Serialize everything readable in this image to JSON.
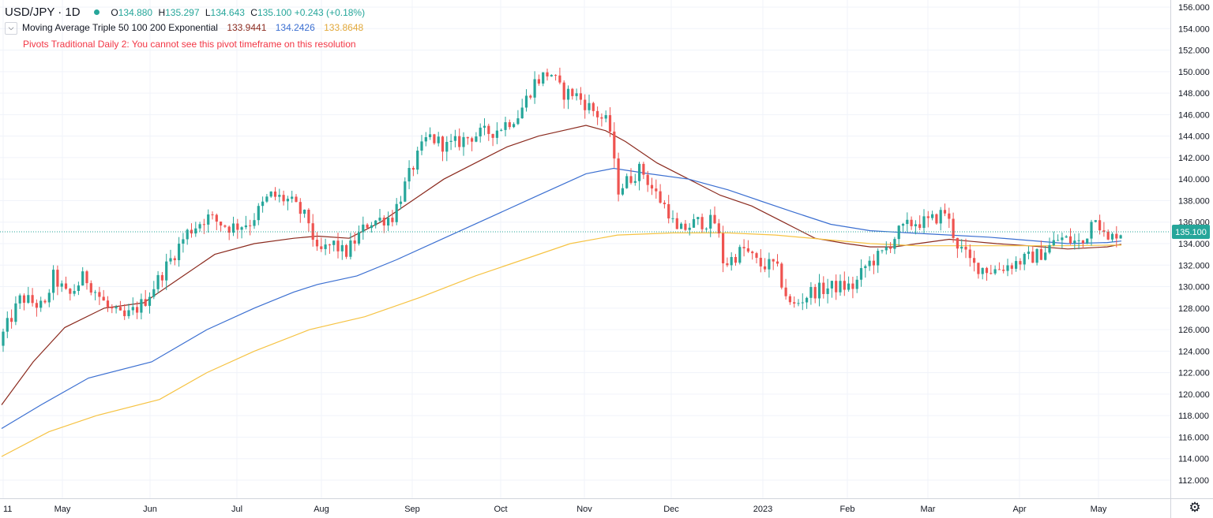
{
  "header": {
    "symbol": "USD/JPY · 1D",
    "open_label": "O",
    "open": "134.880",
    "high_label": "H",
    "high": "135.297",
    "low_label": "L",
    "low": "134.643",
    "close_label": "C",
    "close": "135.100",
    "change": "+0.243 (+0.18%)"
  },
  "indicator": {
    "name": "Moving Average Triple",
    "params": "50 100 200 Exponential",
    "ma1_value": "133.9441",
    "ma2_value": "134.2426",
    "ma3_value": "133.8648"
  },
  "pivot_warning": "Pivots Traditional Daily 2: You cannot see this pivot timeframe on this resolution",
  "price_label": "135.100",
  "colors": {
    "up": "#26a69a",
    "down": "#ef5350",
    "ma1": "#8b2a1e",
    "ma2": "#3b6fd1",
    "ma3": "#f6c343",
    "price_line": "#26a69a",
    "warning": "#f23645",
    "grid": "#f0f3fa"
  },
  "icons": {
    "settings": "gear-icon",
    "collapse": "chevron-down-icon"
  },
  "chart_data": {
    "type": "candlestick",
    "x_ticks": [
      "11",
      "May",
      "Jun",
      "Jul",
      "Aug",
      "Sep",
      "Oct",
      "Nov",
      "Dec",
      "2023",
      "Feb",
      "Mar",
      "Apr",
      "May"
    ],
    "y_ticks": [
      "112.000",
      "114.000",
      "116.000",
      "118.000",
      "120.000",
      "122.000",
      "124.000",
      "126.000",
      "128.000",
      "130.000",
      "132.000",
      "134.000",
      "136.000",
      "138.000",
      "140.000",
      "142.000",
      "144.000",
      "146.000",
      "148.000",
      "150.000",
      "152.000",
      "154.000",
      "156.000"
    ],
    "ylim": [
      110.6,
      156.6
    ],
    "last_price": 135.1,
    "price_path": [
      [
        0,
        124.5
      ],
      [
        30,
        129
      ],
      [
        60,
        128
      ],
      [
        70,
        131
      ],
      [
        90,
        129
      ],
      [
        110,
        131
      ],
      [
        125,
        129.5
      ],
      [
        140,
        128
      ],
      [
        160,
        127
      ],
      [
        185,
        128.5
      ],
      [
        215,
        132
      ],
      [
        240,
        135
      ],
      [
        265,
        136.5
      ],
      [
        295,
        135.5
      ],
      [
        320,
        136
      ],
      [
        345,
        138.5
      ],
      [
        370,
        138
      ],
      [
        395,
        136
      ],
      [
        405,
        133
      ],
      [
        425,
        134
      ],
      [
        440,
        133
      ],
      [
        470,
        136
      ],
      [
        500,
        136.5
      ],
      [
        525,
        141
      ],
      [
        545,
        144
      ],
      [
        570,
        143
      ],
      [
        600,
        144
      ],
      [
        630,
        144.5
      ],
      [
        660,
        146
      ],
      [
        680,
        149
      ],
      [
        700,
        150
      ],
      [
        715,
        148
      ],
      [
        730,
        148
      ],
      [
        760,
        146
      ],
      [
        775,
        145
      ],
      [
        785,
        139
      ],
      [
        800,
        140
      ],
      [
        815,
        141
      ],
      [
        830,
        139
      ],
      [
        850,
        137
      ],
      [
        860,
        135
      ],
      [
        885,
        136
      ],
      [
        910,
        136
      ],
      [
        920,
        132
      ],
      [
        945,
        133.5
      ],
      [
        965,
        132
      ],
      [
        985,
        132
      ],
      [
        1005,
        128
      ],
      [
        1030,
        129.5
      ],
      [
        1060,
        130
      ],
      [
        1085,
        130
      ],
      [
        1100,
        132
      ],
      [
        1120,
        133
      ],
      [
        1140,
        135
      ],
      [
        1160,
        136
      ],
      [
        1180,
        136
      ],
      [
        1200,
        137
      ],
      [
        1215,
        134
      ],
      [
        1235,
        132
      ],
      [
        1260,
        131.5
      ],
      [
        1280,
        132
      ],
      [
        1300,
        132.5
      ],
      [
        1320,
        133
      ],
      [
        1345,
        134.5
      ],
      [
        1375,
        134
      ],
      [
        1390,
        137
      ],
      [
        1405,
        134
      ],
      [
        1418,
        135.1
      ]
    ],
    "series": [
      {
        "name": "Moving Average Triple 50",
        "color": "#8b2a1e",
        "points": [
          [
            0,
            119
          ],
          [
            40,
            123
          ],
          [
            80,
            126.2
          ],
          [
            130,
            128
          ],
          [
            180,
            128.5
          ],
          [
            230,
            131
          ],
          [
            270,
            133
          ],
          [
            320,
            134
          ],
          [
            370,
            134.5
          ],
          [
            400,
            134.7
          ],
          [
            440,
            134.5
          ],
          [
            480,
            136
          ],
          [
            520,
            138
          ],
          [
            560,
            140
          ],
          [
            600,
            141.5
          ],
          [
            640,
            143
          ],
          [
            680,
            144
          ],
          [
            710,
            144.5
          ],
          [
            740,
            145
          ],
          [
            765,
            144.5
          ],
          [
            790,
            143.5
          ],
          [
            830,
            141.5
          ],
          [
            870,
            140
          ],
          [
            910,
            138.5
          ],
          [
            950,
            137.5
          ],
          [
            990,
            136
          ],
          [
            1030,
            134.5
          ],
          [
            1070,
            134
          ],
          [
            1100,
            133.7
          ],
          [
            1130,
            133.7
          ],
          [
            1160,
            134
          ],
          [
            1200,
            134.4
          ],
          [
            1230,
            134.2
          ],
          [
            1260,
            134
          ],
          [
            1300,
            133.8
          ],
          [
            1350,
            133.5
          ],
          [
            1400,
            133.7
          ],
          [
            1418,
            133.94
          ]
        ]
      },
      {
        "name": "Moving Average Triple 100",
        "color": "#3b6fd1",
        "points": [
          [
            0,
            116.8
          ],
          [
            50,
            119
          ],
          [
            110,
            121.5
          ],
          [
            190,
            123
          ],
          [
            260,
            126
          ],
          [
            320,
            128
          ],
          [
            370,
            129.5
          ],
          [
            400,
            130.2
          ],
          [
            450,
            131
          ],
          [
            500,
            132.5
          ],
          [
            560,
            134.5
          ],
          [
            620,
            136.5
          ],
          [
            680,
            138.5
          ],
          [
            740,
            140.5
          ],
          [
            775,
            141
          ],
          [
            820,
            140.5
          ],
          [
            870,
            140
          ],
          [
            920,
            139
          ],
          [
            960,
            138
          ],
          [
            1000,
            137
          ],
          [
            1050,
            135.8
          ],
          [
            1100,
            135.2
          ],
          [
            1150,
            135
          ],
          [
            1200,
            134.8
          ],
          [
            1250,
            134.6
          ],
          [
            1300,
            134.3
          ],
          [
            1350,
            134
          ],
          [
            1400,
            134.1
          ],
          [
            1418,
            134.24
          ]
        ]
      },
      {
        "name": "Moving Average Triple 200",
        "color": "#f6c343",
        "points": [
          [
            0,
            114.2
          ],
          [
            60,
            116.5
          ],
          [
            120,
            118
          ],
          [
            200,
            119.5
          ],
          [
            260,
            122
          ],
          [
            320,
            124
          ],
          [
            390,
            126
          ],
          [
            460,
            127.2
          ],
          [
            530,
            129
          ],
          [
            600,
            131
          ],
          [
            660,
            132.5
          ],
          [
            720,
            134
          ],
          [
            780,
            134.8
          ],
          [
            850,
            135
          ],
          [
            920,
            135
          ],
          [
            980,
            134.8
          ],
          [
            1040,
            134.4
          ],
          [
            1100,
            134
          ],
          [
            1160,
            133.8
          ],
          [
            1220,
            133.8
          ],
          [
            1280,
            133.8
          ],
          [
            1340,
            133.8
          ],
          [
            1400,
            133.85
          ],
          [
            1418,
            133.86
          ]
        ]
      }
    ]
  }
}
